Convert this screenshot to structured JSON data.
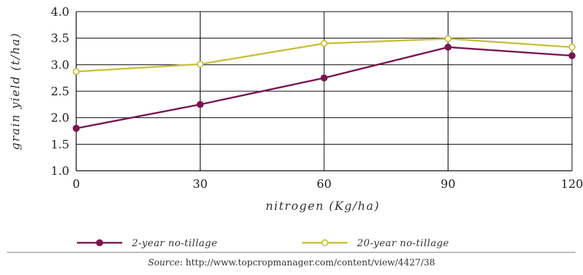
{
  "chart_data": {
    "type": "line",
    "x": [
      0,
      30,
      60,
      90,
      120
    ],
    "xlabel": "nitrogen (Kg/ha)",
    "ylabel": "grain yield (t/ha)",
    "xlim": [
      0,
      120
    ],
    "ylim": [
      1.0,
      4.0
    ],
    "xticks": [
      "0",
      "30",
      "60",
      "90",
      "120"
    ],
    "yticks": [
      "1.0",
      "1.5",
      "2.0",
      "2.5",
      "3.0",
      "3.5",
      "4.0"
    ],
    "grid": true,
    "legend_position": "bottom",
    "series": [
      {
        "name": "2-year no-tillage",
        "color": "#7a1450",
        "marker": "filled-circle",
        "values": [
          1.8,
          2.25,
          2.75,
          3.33,
          3.17
        ]
      },
      {
        "name": "20-year no-tillage",
        "color": "#c8c03a",
        "marker": "open-circle",
        "values": [
          2.87,
          3.01,
          3.4,
          3.49,
          3.33
        ]
      }
    ]
  },
  "source": {
    "label": "Source",
    "url": "http://www.topcropmanager.com/content/view/4427/38"
  }
}
